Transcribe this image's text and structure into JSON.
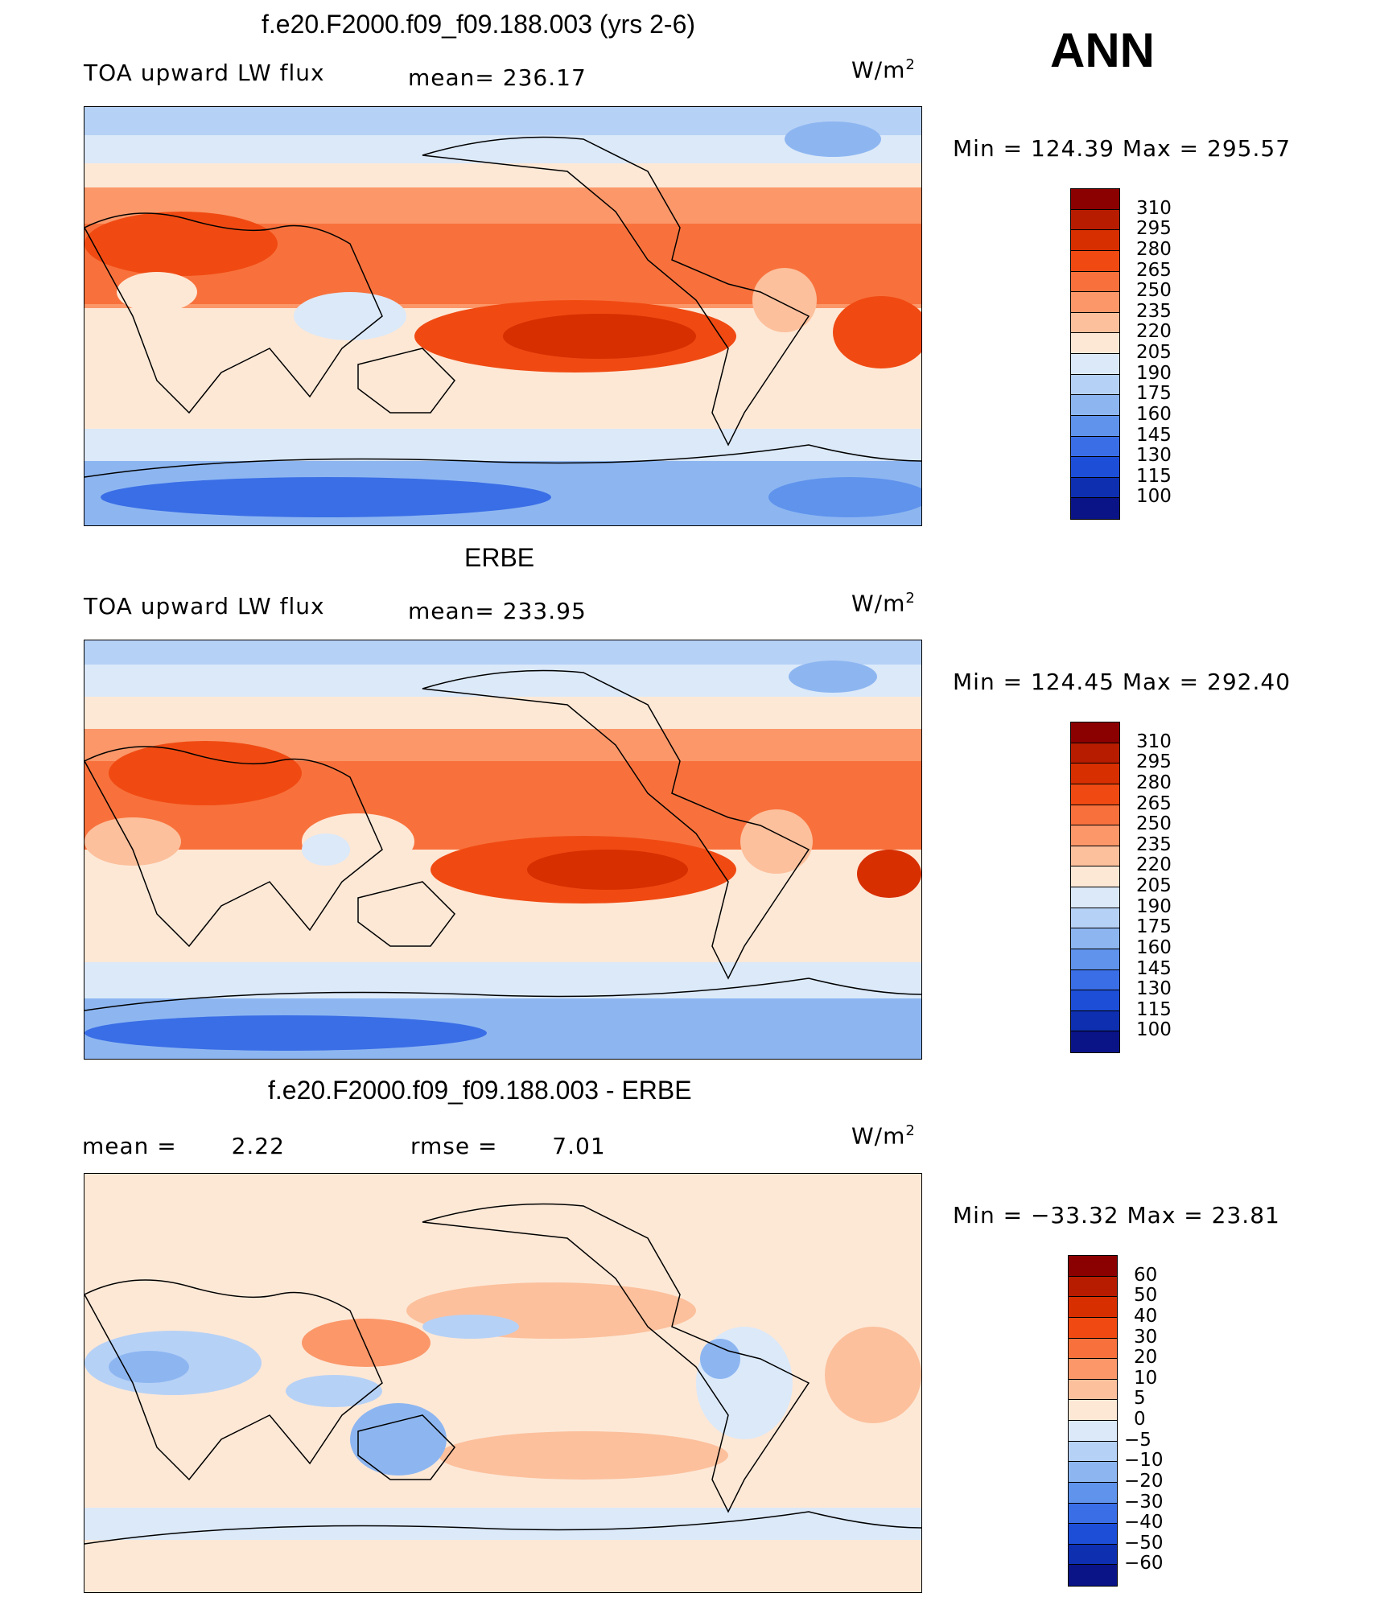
{
  "figure": {
    "season": "ANN"
  },
  "chart_data": [
    {
      "type": "heatmap",
      "title": "f.e20.F2000.f09_f09.188.003 (yrs 2-6)",
      "variable": "TOA upward LW flux",
      "mean_label": "mean=",
      "mean": "236.17",
      "units": "W/m",
      "units_sup": "2",
      "min_label": "Min",
      "min": "124.39",
      "max_label": "Max",
      "max": "295.57",
      "eq": "=",
      "colorbar_levels": [
        "310",
        "295",
        "280",
        "265",
        "250",
        "235",
        "220",
        "205",
        "190",
        "175",
        "160",
        "145",
        "130",
        "115",
        "100"
      ],
      "colorbar_colors": [
        "#8b0000",
        "#b71c00",
        "#d72f00",
        "#f04a12",
        "#f8713c",
        "#fb9769",
        "#fcc09c",
        "#fde8d6",
        "#dbe9f9",
        "#b6d1f6",
        "#8db6f1",
        "#5f93ec",
        "#3a6ee6",
        "#1c4ed8",
        "#0d2fb0",
        "#0a1487"
      ]
    },
    {
      "type": "heatmap",
      "title": "ERBE",
      "variable": "TOA upward LW flux",
      "mean_label": "mean=",
      "mean": "233.95",
      "units": "W/m",
      "units_sup": "2",
      "min_label": "Min",
      "min": "124.45",
      "max_label": "Max",
      "max": "292.40",
      "eq": "=",
      "colorbar_levels": [
        "310",
        "295",
        "280",
        "265",
        "250",
        "235",
        "220",
        "205",
        "190",
        "175",
        "160",
        "145",
        "130",
        "115",
        "100"
      ],
      "colorbar_colors": [
        "#8b0000",
        "#b71c00",
        "#d72f00",
        "#f04a12",
        "#f8713c",
        "#fb9769",
        "#fcc09c",
        "#fde8d6",
        "#dbe9f9",
        "#b6d1f6",
        "#8db6f1",
        "#5f93ec",
        "#3a6ee6",
        "#1c4ed8",
        "#0d2fb0",
        "#0a1487"
      ]
    },
    {
      "type": "heatmap",
      "title": "f.e20.F2000.f09_f09.188.003 - ERBE",
      "mean_label": "mean  =",
      "mean": "2.22",
      "rmse_label": "rmse  =",
      "rmse": "7.01",
      "units": "W/m",
      "units_sup": "2",
      "min_label": "Min",
      "min": "−33.32",
      "max_label": "Max",
      "max": "23.81",
      "eq": "=",
      "colorbar_levels": [
        "60",
        "50",
        "40",
        "30",
        "20",
        "10",
        "5",
        "0",
        "−5",
        "−10",
        "−20",
        "−30",
        "−40",
        "−50",
        "−60"
      ],
      "colorbar_colors": [
        "#8b0000",
        "#b71c00",
        "#d72f00",
        "#f04a12",
        "#f8713c",
        "#fb9769",
        "#fcc09c",
        "#fde8d6",
        "#dbe9f9",
        "#b6d1f6",
        "#8db6f1",
        "#5f93ec",
        "#3a6ee6",
        "#1c4ed8",
        "#0d2fb0",
        "#0a1487"
      ]
    }
  ]
}
